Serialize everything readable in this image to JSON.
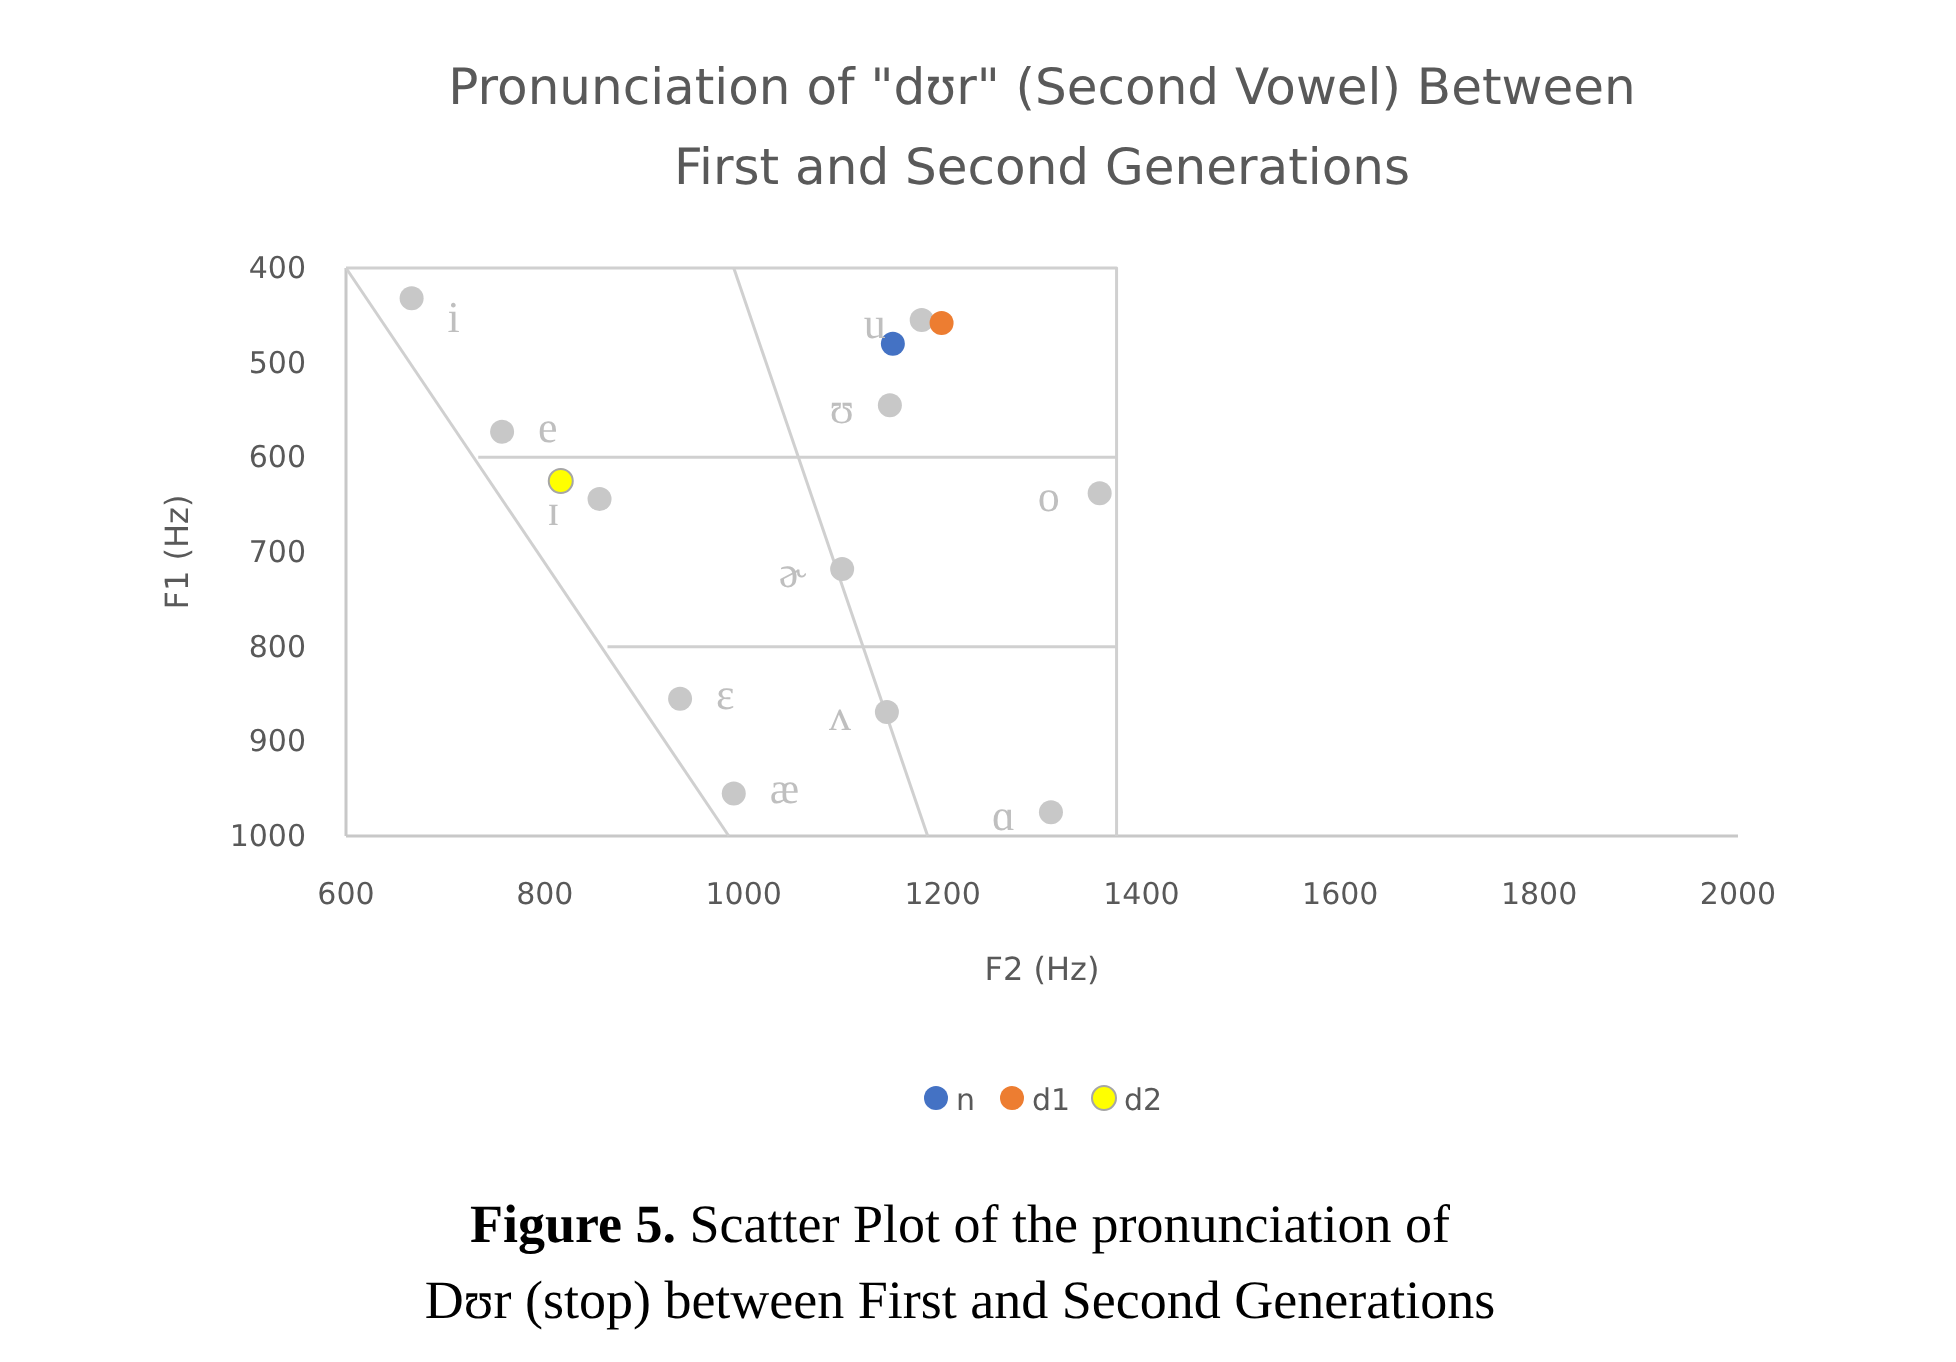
{
  "chart_data": {
    "type": "scatter",
    "title": "Pronunciation of \"dʊr\" (Second Vowel) Between First and Second Generations",
    "xlabel": "F2 (Hz)",
    "ylabel": "F1 (Hz)",
    "xlim": [
      600,
      2000
    ],
    "xticks": [
      600,
      800,
      1000,
      1200,
      1400,
      1600,
      1800,
      2000
    ],
    "ylim": [
      1000,
      400
    ],
    "yticks": [
      400,
      500,
      600,
      700,
      800,
      900,
      1000
    ],
    "grid": false,
    "legend": "bottom",
    "marker": "circle",
    "series": [
      {
        "type": "line",
        "marker": "none",
        "color": "#d0d0d0",
        "x": [
          600,
          1375,
          1375
        ],
        "values": [
          400,
          400,
          1000
        ]
      },
      {
        "type": "line",
        "marker": "none",
        "color": "#d0d0d0",
        "x": [
          600,
          985
        ],
        "values": [
          400,
          1000
        ]
      },
      {
        "type": "line",
        "marker": "none",
        "color": "#d0d0d0",
        "x": [
          990,
          1185
        ],
        "values": [
          400,
          1000
        ]
      },
      {
        "type": "line",
        "marker": "none",
        "color": "#d0d0d0",
        "x": [
          733,
          1375
        ],
        "values": [
          600,
          600
        ]
      },
      {
        "type": "line",
        "marker": "none",
        "color": "#d0d0d0",
        "x": [
          863,
          1375
        ],
        "values": [
          800,
          800
        ]
      },
      {
        "color": "#c8c8c8",
        "x": [
          666,
          1179,
          1147,
          757,
          855,
          1358,
          1099,
          936,
          1144,
          990,
          1309
        ],
        "values": [
          432,
          455,
          545,
          573,
          644,
          638,
          718,
          855,
          869,
          955,
          975
        ]
      },
      {
        "name": "n",
        "color": "#4472c4",
        "x": [
          1150
        ],
        "values": [
          480
        ]
      },
      {
        "name": "d1",
        "color": "#ed7d31",
        "x": [
          1199
        ],
        "values": [
          458
        ]
      },
      {
        "name": "d2",
        "color": "#ffff00",
        "x": [
          816
        ],
        "values": [
          625
        ]
      }
    ],
    "annotations": [
      {
        "text": "i",
        "x": 666,
        "y": 432
      },
      {
        "text": "u",
        "x": 1179,
        "y": 455
      },
      {
        "text": "ʊ",
        "x": 1147,
        "y": 545
      },
      {
        "text": "e",
        "x": 757,
        "y": 573
      },
      {
        "text": "ɪ",
        "x": 855,
        "y": 644
      },
      {
        "text": "o",
        "x": 1358,
        "y": 638
      },
      {
        "text": "ɚ",
        "x": 1099,
        "y": 718
      },
      {
        "text": "ɛ",
        "x": 936,
        "y": 855
      },
      {
        "text": "ʌ",
        "x": 1144,
        "y": 869
      },
      {
        "text": "æ",
        "x": 990,
        "y": 955
      },
      {
        "text": "ɑ",
        "x": 1309,
        "y": 975
      },
      "Figure 5. Scatter Plot of the pronunciation of Dʊr (stop) between First and Second Generations"
    ]
  }
}
